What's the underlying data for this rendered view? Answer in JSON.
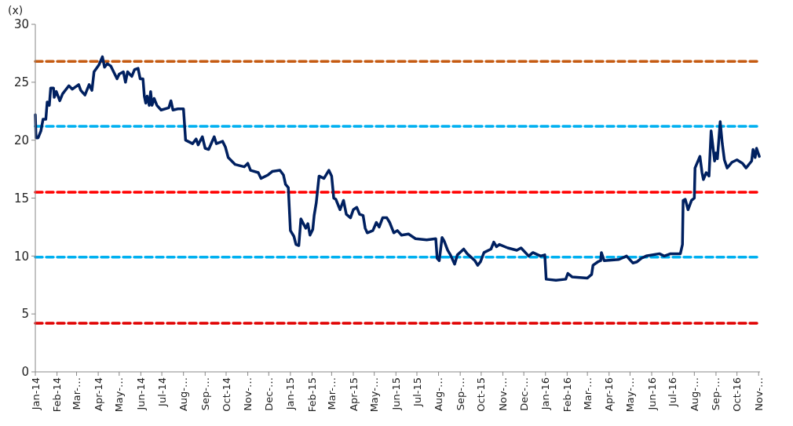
{
  "chart_data": {
    "type": "line",
    "ylabel": "(x)",
    "xlim": [
      "2014-01-01",
      "2016-11-03"
    ],
    "ylim": [
      0,
      30
    ],
    "yticks": [
      0,
      5,
      10,
      15,
      20,
      25,
      30
    ],
    "xticks": [
      {
        "value": "2014-01-01",
        "label": "Jan-14"
      },
      {
        "value": "2014-02-01",
        "label": "Feb-14"
      },
      {
        "value": "2014-03-01",
        "label": "Mar-…"
      },
      {
        "value": "2014-04-01",
        "label": "Apr-14"
      },
      {
        "value": "2014-05-01",
        "label": "May-…"
      },
      {
        "value": "2014-06-01",
        "label": "Jun-14"
      },
      {
        "value": "2014-07-01",
        "label": "Jul-14"
      },
      {
        "value": "2014-08-01",
        "label": "Aug-…"
      },
      {
        "value": "2014-09-01",
        "label": "Sep-…"
      },
      {
        "value": "2014-10-01",
        "label": "Oct-14"
      },
      {
        "value": "2014-11-01",
        "label": "Nov-…"
      },
      {
        "value": "2014-12-01",
        "label": "Dec-…"
      },
      {
        "value": "2015-01-01",
        "label": "Jan-15"
      },
      {
        "value": "2015-02-01",
        "label": "Feb-15"
      },
      {
        "value": "2015-03-01",
        "label": "Mar-…"
      },
      {
        "value": "2015-04-01",
        "label": "Apr-15"
      },
      {
        "value": "2015-05-01",
        "label": "May-…"
      },
      {
        "value": "2015-06-01",
        "label": "Jun-15"
      },
      {
        "value": "2015-07-01",
        "label": "Jul-15"
      },
      {
        "value": "2015-08-01",
        "label": "Aug-…"
      },
      {
        "value": "2015-09-01",
        "label": "Sep-…"
      },
      {
        "value": "2015-10-01",
        "label": "Oct-15"
      },
      {
        "value": "2015-11-01",
        "label": "Nov-…"
      },
      {
        "value": "2015-12-01",
        "label": "Dec-…"
      },
      {
        "value": "2016-01-01",
        "label": "Jan-16"
      },
      {
        "value": "2016-02-01",
        "label": "Feb-16"
      },
      {
        "value": "2016-03-01",
        "label": "Mar-…"
      },
      {
        "value": "2016-04-01",
        "label": "Apr-16"
      },
      {
        "value": "2016-05-01",
        "label": "May-…"
      },
      {
        "value": "2016-06-01",
        "label": "Jun-16"
      },
      {
        "value": "2016-07-01",
        "label": "Jul-16"
      },
      {
        "value": "2016-08-01",
        "label": "Aug-…"
      },
      {
        "value": "2016-09-01",
        "label": "Sep-…"
      },
      {
        "value": "2016-10-01",
        "label": "Oct-16"
      },
      {
        "value": "2016-11-01",
        "label": "Nov-…"
      }
    ],
    "grid": false,
    "line_style": "solid",
    "ref_lines": [
      {
        "axis": "y",
        "value": 26.8,
        "color": "#c55a11",
        "line_style": "dashed"
      },
      {
        "axis": "y",
        "value": 21.2,
        "color": "#00b0f0",
        "line_style": "dashed"
      },
      {
        "axis": "y",
        "value": 15.5,
        "color": "#ff0000",
        "line_style": "dashed"
      },
      {
        "axis": "y",
        "value": 9.9,
        "color": "#00b0f0",
        "line_style": "dashed"
      },
      {
        "axis": "y",
        "value": 4.2,
        "color": "#e00000",
        "line_style": "dashed"
      }
    ],
    "series": [
      {
        "color": "#002060",
        "x": [
          "2014-01-01",
          "2014-01-02",
          "2014-01-05",
          "2014-01-09",
          "2014-01-12",
          "2014-01-16",
          "2014-01-18",
          "2014-01-21",
          "2014-01-23",
          "2014-01-27",
          "2014-01-28",
          "2014-01-31",
          "2014-02-05",
          "2014-02-09",
          "2014-02-18",
          "2014-02-23",
          "2014-03-04",
          "2014-03-07",
          "2014-03-13",
          "2014-03-19",
          "2014-03-23",
          "2014-03-26",
          "2014-04-02",
          "2014-04-07",
          "2014-04-10",
          "2014-04-14",
          "2014-04-19",
          "2014-04-28",
          "2014-05-01",
          "2014-05-07",
          "2014-05-10",
          "2014-05-13",
          "2014-05-19",
          "2014-05-23",
          "2014-05-28",
          "2014-05-31",
          "2014-06-04",
          "2014-06-06",
          "2014-06-08",
          "2014-06-10",
          "2014-06-13",
          "2014-06-15",
          "2014-06-17",
          "2014-06-20",
          "2014-06-24",
          "2014-06-30",
          "2014-07-11",
          "2014-07-14",
          "2014-07-17",
          "2014-07-24",
          "2014-08-01",
          "2014-08-04",
          "2014-08-14",
          "2014-08-19",
          "2014-08-22",
          "2014-08-28",
          "2014-09-01",
          "2014-09-06",
          "2014-09-14",
          "2014-09-17",
          "2014-09-26",
          "2014-09-30",
          "2014-10-04",
          "2014-10-14",
          "2014-10-27",
          "2014-11-01",
          "2014-11-05",
          "2014-11-16",
          "2014-11-20",
          "2014-11-30",
          "2014-12-06",
          "2014-12-17",
          "2014-12-22",
          "2014-12-25",
          "2014-12-29",
          "2015-01-01",
          "2015-01-06",
          "2015-01-09",
          "2015-01-13",
          "2015-01-16",
          "2015-01-23",
          "2015-01-26",
          "2015-01-29",
          "2015-02-02",
          "2015-02-04",
          "2015-02-07",
          "2015-02-11",
          "2015-02-18",
          "2015-02-25",
          "2015-03-01",
          "2015-03-04",
          "2015-03-07",
          "2015-03-13",
          "2015-03-18",
          "2015-03-22",
          "2015-03-28",
          "2015-04-01",
          "2015-04-06",
          "2015-04-10",
          "2015-04-15",
          "2015-04-18",
          "2015-04-21",
          "2015-04-29",
          "2015-05-04",
          "2015-05-08",
          "2015-05-13",
          "2015-05-19",
          "2015-05-23",
          "2015-05-29",
          "2015-06-03",
          "2015-06-09",
          "2015-06-19",
          "2015-06-29",
          "2015-07-15",
          "2015-07-28",
          "2015-07-30",
          "2015-08-02",
          "2015-08-06",
          "2015-08-09",
          "2015-08-14",
          "2015-08-18",
          "2015-08-24",
          "2015-08-28",
          "2015-09-06",
          "2015-09-11",
          "2015-09-22",
          "2015-09-26",
          "2015-09-30",
          "2015-10-05",
          "2015-10-15",
          "2015-10-19",
          "2015-10-23",
          "2015-10-27",
          "2015-11-08",
          "2015-11-21",
          "2015-11-27",
          "2015-12-08",
          "2015-12-14",
          "2015-12-25",
          "2015-12-31",
          "2016-01-02",
          "2016-01-16",
          "2016-01-30",
          "2016-02-02",
          "2016-02-08",
          "2016-03-01",
          "2016-03-07",
          "2016-03-09",
          "2016-03-16",
          "2016-03-20",
          "2016-03-21",
          "2016-03-25",
          "2016-04-15",
          "2016-04-26",
          "2016-05-05",
          "2016-05-11",
          "2016-05-17",
          "2016-05-24",
          "2016-06-12",
          "2016-06-19",
          "2016-06-28",
          "2016-07-12",
          "2016-07-15",
          "2016-07-16",
          "2016-07-19",
          "2016-07-23",
          "2016-07-28",
          "2016-08-01",
          "2016-08-02",
          "2016-08-09",
          "2016-08-12",
          "2016-08-14",
          "2016-08-18",
          "2016-08-22",
          "2016-08-25",
          "2016-08-30",
          "2016-09-01",
          "2016-09-03",
          "2016-09-07",
          "2016-09-10",
          "2016-09-13",
          "2016-09-17",
          "2016-09-24",
          "2016-10-01",
          "2016-10-09",
          "2016-10-14",
          "2016-10-22",
          "2016-10-24",
          "2016-10-27",
          "2016-10-29",
          "2016-11-02"
        ],
        "values": [
          22.2,
          20.2,
          20.2,
          20.8,
          21.8,
          21.8,
          23.3,
          23.0,
          24.5,
          24.5,
          23.7,
          24.2,
          23.4,
          24.0,
          24.7,
          24.4,
          24.8,
          24.3,
          23.9,
          24.8,
          24.3,
          25.9,
          26.5,
          27.2,
          26.3,
          26.6,
          26.4,
          25.3,
          25.7,
          25.9,
          25.0,
          25.9,
          25.5,
          26.1,
          26.2,
          25.3,
          25.3,
          23.8,
          23.2,
          23.8,
          23.0,
          24.2,
          23.0,
          23.6,
          23.0,
          22.6,
          22.8,
          23.4,
          22.6,
          22.7,
          22.7,
          20.0,
          19.7,
          20.1,
          19.6,
          20.3,
          19.3,
          19.2,
          20.3,
          19.7,
          19.9,
          19.4,
          18.5,
          17.9,
          17.7,
          18.0,
          17.4,
          17.2,
          16.7,
          17.0,
          17.3,
          17.4,
          17.0,
          16.2,
          15.9,
          12.2,
          11.7,
          11.0,
          10.9,
          13.2,
          12.4,
          12.8,
          11.8,
          12.3,
          13.5,
          14.6,
          16.9,
          16.7,
          17.4,
          16.9,
          15.0,
          14.9,
          14.0,
          14.8,
          13.6,
          13.3,
          14.0,
          14.2,
          13.6,
          13.5,
          12.4,
          12.0,
          12.2,
          12.9,
          12.5,
          13.3,
          13.3,
          12.9,
          12.0,
          12.2,
          11.8,
          11.9,
          11.5,
          11.4,
          11.5,
          9.8,
          9.6,
          11.6,
          11.3,
          10.5,
          10.1,
          9.3,
          10.1,
          10.6,
          10.2,
          9.6,
          9.2,
          9.5,
          10.3,
          10.6,
          11.2,
          10.8,
          11.0,
          10.7,
          10.5,
          10.7,
          10.0,
          10.3,
          10.0,
          10.1,
          8.0,
          7.9,
          8.0,
          8.5,
          8.2,
          8.1,
          8.4,
          9.2,
          9.5,
          9.6,
          10.3,
          9.6,
          9.7,
          10.0,
          9.4,
          9.5,
          9.8,
          10.0,
          10.2,
          10.0,
          10.2,
          10.2,
          11.0,
          14.8,
          14.9,
          14.0,
          14.8,
          15.0,
          17.6,
          18.6,
          17.2,
          16.6,
          17.2,
          16.9,
          20.8,
          18.2,
          18.9,
          18.4,
          21.6,
          19.7,
          18.3,
          17.6,
          18.1,
          18.3,
          18.0,
          17.6,
          18.2,
          19.2,
          18.5,
          19.3,
          18.6
        ]
      }
    ]
  }
}
